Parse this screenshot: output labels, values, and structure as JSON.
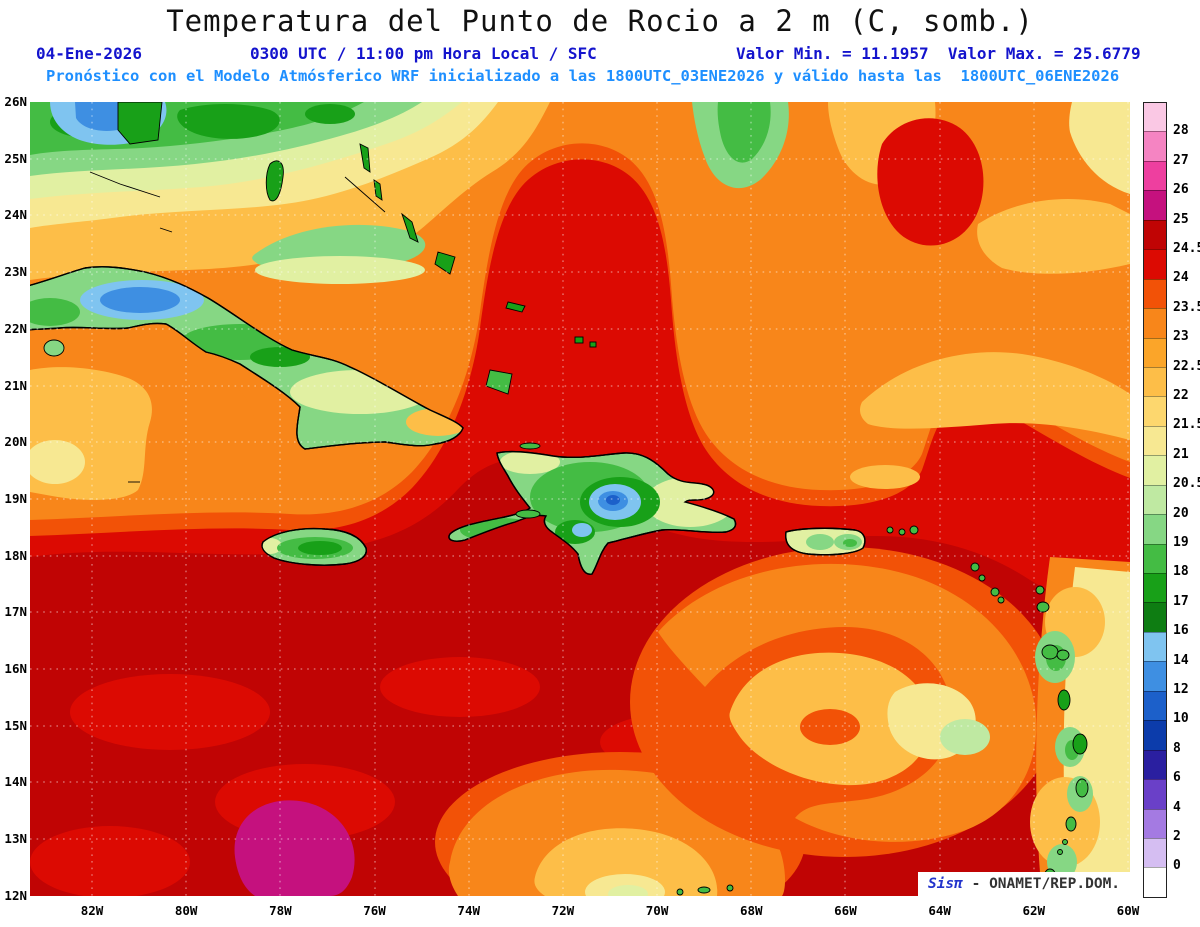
{
  "title": "Temperatura del Punto de Rocio a 2 m (C, somb.)",
  "header": {
    "date": "04-Ene-2026",
    "time_info": "0300 UTC / 11:00 pm Hora Local / SFC",
    "min_max": "Valor Min. = 11.1957  Valor Max. = 25.6779",
    "forecast_line": "Pronóstico con el Modelo Atmósferico WRF inicializado a las 1800UTC_03ENE2026 y válido hasta las  1800UTC_06ENE2026"
  },
  "map": {
    "lat_labels": [
      "26N",
      "25N",
      "24N",
      "23N",
      "22N",
      "21N",
      "20N",
      "19N",
      "18N",
      "17N",
      "16N",
      "15N",
      "14N",
      "13N",
      "12N"
    ],
    "lon_labels": [
      "82W",
      "80W",
      "78W",
      "76W",
      "74W",
      "72W",
      "70W",
      "68W",
      "66W",
      "64W",
      "62W",
      "60W"
    ]
  },
  "colorbar": {
    "labels": [
      "28",
      "27",
      "26",
      "25",
      "24.5",
      "24",
      "23.5",
      "23",
      "22.5",
      "22",
      "21.5",
      "21",
      "20.5",
      "20",
      "19",
      "18",
      "17",
      "16",
      "14",
      "12",
      "10",
      "8",
      "6",
      "4",
      "2",
      "0"
    ],
    "colors_top_to_bottom": [
      "#fac8e4",
      "#f584c2",
      "#ee3f9f",
      "#c5117e",
      "#c00404",
      "#dc0a02",
      "#f25207",
      "#f8861a",
      "#fba529",
      "#fdbe48",
      "#fdd76e",
      "#f7e892",
      "#e1f0a2",
      "#bfe9a2",
      "#86d784",
      "#44bc44",
      "#18a018",
      "#0e7d12",
      "#7fc4f0",
      "#3e8fe2",
      "#1c60ca",
      "#0c3cab",
      "#2a1fa0",
      "#6a40c8",
      "#a47ae2",
      "#d5bef2",
      "#ffffff"
    ]
  },
  "watermark": {
    "brand": "Sisπ",
    "text": " - ONAMET/REP.DOM."
  },
  "theme": {
    "background": "#ffffff",
    "title": "#111111",
    "header_line2": "#1414cd",
    "header_line3": "#1e8fff",
    "axis_labels": "#000000",
    "watermark_brand": "#2233cc",
    "watermark_text": "#333333"
  },
  "chart_data": {
    "type": "heatmap",
    "title": "Temperatura del Punto de Rocio a 2 m (C, somb.)",
    "variable": "Dew point temperature at 2 m, shaded (C)",
    "value_min": 11.1957,
    "value_max": 25.6779,
    "levels": [
      0,
      2,
      4,
      6,
      8,
      10,
      12,
      14,
      16,
      17,
      18,
      19,
      20,
      20.5,
      21,
      21.5,
      22,
      22.5,
      23,
      23.5,
      24,
      24.5,
      25,
      26,
      27,
      28
    ],
    "lat_range": [
      "12N",
      "26N"
    ],
    "lon_range": [
      "82W",
      "60W"
    ],
    "legend_position": "right",
    "grid": "dotted"
  }
}
